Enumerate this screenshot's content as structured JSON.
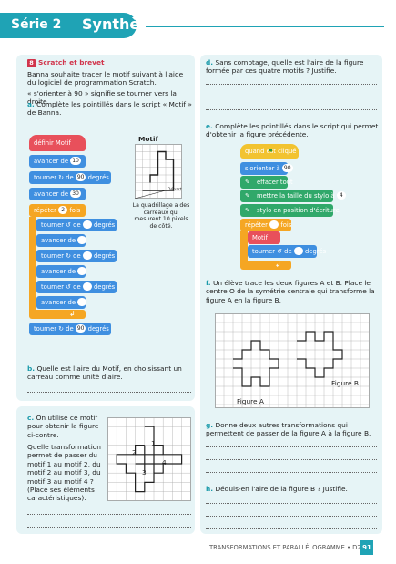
{
  "header": {
    "serie": "Série 2",
    "title": "Synthèse"
  },
  "section": {
    "number": "8",
    "title": "Scratch et brevet",
    "intro": "Banna souhaite tracer le motif suivant à l'aide du logiciel de programmation Scratch.",
    "note": "« s'orienter à 90 » signifie se tourner vers la droite.",
    "a_label": "a.",
    "a_text": "Complète les pointillés dans le script « Motif » de Banna."
  },
  "script_a": {
    "hat": "définir Motif",
    "avancer": "avancer de",
    "tourner": "tourner",
    "de": "de",
    "degres": "degrés",
    "repeter": "répéter",
    "fois": "fois",
    "v1": "10",
    "v2": "90",
    "v3": "30",
    "v4": "2",
    "v5": "90"
  },
  "motif": {
    "label": "Motif",
    "depart": "Départ",
    "caption": "La quadrillage a des carreaux qui mesurent 10 pixels de côté."
  },
  "b": {
    "label": "b.",
    "text": "Quelle est l'aire du Motif, en choisissant un carreau comme unité d'aire."
  },
  "c": {
    "label": "c.",
    "text1": "On utilise ce motif pour obtenir la figure ci-contre.",
    "text2": "Quelle transformation permet de passer du motif 1 au motif 2, du motif 2 au motif 3, du motif 3 au motif 4 ? (Place ses éléments caractéristiques).",
    "n1": "1",
    "n2": "2",
    "n3": "3",
    "n4": "4"
  },
  "d": {
    "label": "d.",
    "text": "Sans comptage, quelle est l'aire de la figure formée par ces quatre motifs ? Justifie."
  },
  "e": {
    "label": "e.",
    "text": "Complète les pointillés dans le script qui permet d'obtenir la figure précédente.",
    "hat": "quand  est cliqué",
    "orienter": "s'orienter à",
    "orienter_val": "90",
    "effacer": "effacer tout",
    "taille": "mettre la taille du stylo à",
    "taille_val": "4",
    "ecriture": "stylo en position d'écriture",
    "repeter": "répéter",
    "fois": "fois",
    "motif": "Motif",
    "tourner": "tourner",
    "de": "de",
    "degres": "degrés"
  },
  "f": {
    "label": "f.",
    "text": "Un élève trace les deux figures A et B. Place le centre O de la symétrie centrale qui transforme la figure A en la figure B.",
    "figA": "Figure A",
    "figB": "Figure B"
  },
  "g": {
    "label": "g.",
    "text": "Donne deux autres transformations qui permettent de passer de la figure A à la figure B."
  },
  "h": {
    "label": "h.",
    "text": "Déduis-en l'aire de la figure B ? Justifie."
  },
  "footer": {
    "text": "TRANSFORMATIONS ET PARALLÉLOGRAMME • D2",
    "page": "91"
  },
  "colors": {
    "accent": "#1fa3b5",
    "section": "#d1354c"
  }
}
